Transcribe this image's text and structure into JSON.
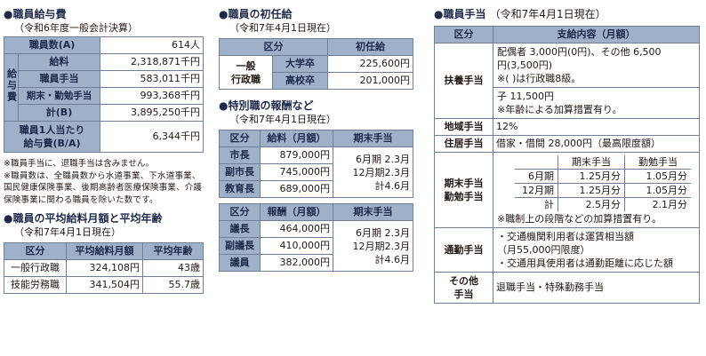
{
  "salary": {
    "title": "●職員給与費",
    "subtitle": "（令和6年度一般会計決算）",
    "staff_count_label": "職員数(A)",
    "staff_count_value": "614人",
    "group_label": "給与費",
    "rows": [
      {
        "label": "給料",
        "value": "2,318,871千円"
      },
      {
        "label": "職員手当",
        "value": "583,011千円"
      },
      {
        "label": "期末・勤勉手当",
        "value": "993,368千円"
      },
      {
        "label": "計(B)",
        "value": "3,895,250千円"
      }
    ],
    "per_person_label_1": "職員1人当たり",
    "per_person_label_2": "給与費(B/A)",
    "per_person_value": "6,344千円",
    "notes": [
      "※職員手当に、退職手当は含みません。",
      "※職員数は、全職員数から水道事業、下水道事業、国民健康保険事業、後期高齢者医療保険事業、介護保険事業に関わる職員を除いた数です。"
    ]
  },
  "avg": {
    "title": "●職員の平均給料月額と平均年齢",
    "subtitle": "（令和7年4月1日現在）",
    "headers": [
      "区分",
      "平均給料月額",
      "平均年齢"
    ],
    "rows": [
      {
        "label": "一般行政職",
        "salary": "324,108円",
        "age": "43歳"
      },
      {
        "label": "技能労務職",
        "salary": "341,504円",
        "age": "55.7歳"
      }
    ]
  },
  "starting": {
    "title": "●職員の初任給",
    "subtitle": "（令和7年4月1日現在）",
    "headers": [
      "区分",
      "初任給"
    ],
    "group_label_1": "一般",
    "group_label_2": "行政職",
    "rows": [
      {
        "label": "大学卒",
        "value": "225,600円"
      },
      {
        "label": "高校卒",
        "value": "201,000円"
      }
    ]
  },
  "special": {
    "title": "●特別職の報酬など",
    "subtitle": "（令和7年4月1日現在）",
    "table1": {
      "headers": [
        "区分",
        "給料（月額）",
        "期末手当"
      ],
      "rows": [
        {
          "label": "市長",
          "value": "879,000円"
        },
        {
          "label": "副市長",
          "value": "745,000円"
        },
        {
          "label": "教育長",
          "value": "689,000円"
        }
      ],
      "bonus": [
        "6月期 2.3月",
        "12月期2.3月",
        "計4.6月"
      ]
    },
    "table2": {
      "headers": [
        "区分",
        "報酬（月額）",
        "期末手当"
      ],
      "rows": [
        {
          "label": "議長",
          "value": "464,000円"
        },
        {
          "label": "副議長",
          "value": "410,000円"
        },
        {
          "label": "議員",
          "value": "382,000円"
        }
      ],
      "bonus": [
        "6月期 2.3月",
        "12月期2.3月",
        "計4.6月"
      ]
    }
  },
  "allowance": {
    "title": "●職員手当",
    "subtitle": "（令和7年4月1日現在）",
    "headers": [
      "区分",
      "支給内容（月額）"
    ],
    "dependents": {
      "label": "扶養手当",
      "lines_a": [
        "配偶者 3,000円(0円)、その他 6,500",
        "円(3,500円)",
        "※( )は行政職8級。"
      ],
      "lines_b": [
        "子 11,500円",
        "※年齢による加算措置有り。"
      ]
    },
    "regional": {
      "label": "地域手当",
      "value": "12%"
    },
    "housing": {
      "label": "住居手当",
      "value": "借家・借間 28,000円（最高限度額）"
    },
    "bonus": {
      "label_1": "期末手当",
      "label_2": "勤勉手当",
      "col_headers": [
        "期末手当",
        "勤勉手当"
      ],
      "rows": [
        {
          "label": "6月期",
          "a": "1.25月分",
          "b": "1.05月分"
        },
        {
          "label": "12月期",
          "a": "1.25月分",
          "b": "1.05月分"
        },
        {
          "label": "計",
          "a": "2.5月分",
          "b": "2.1月分"
        }
      ],
      "note": "※職制上の段階などの加算措置有り。"
    },
    "commute": {
      "label": "通勤手当",
      "lines": [
        "・交通機関利用者は運賃相当額",
        "（月55,000円限度）",
        "・交通用具使用者は通勤距離に応じた額"
      ]
    },
    "other": {
      "label_1": "その他",
      "label_2": "手当",
      "value": "退職手当・特殊勤務手当"
    }
  }
}
